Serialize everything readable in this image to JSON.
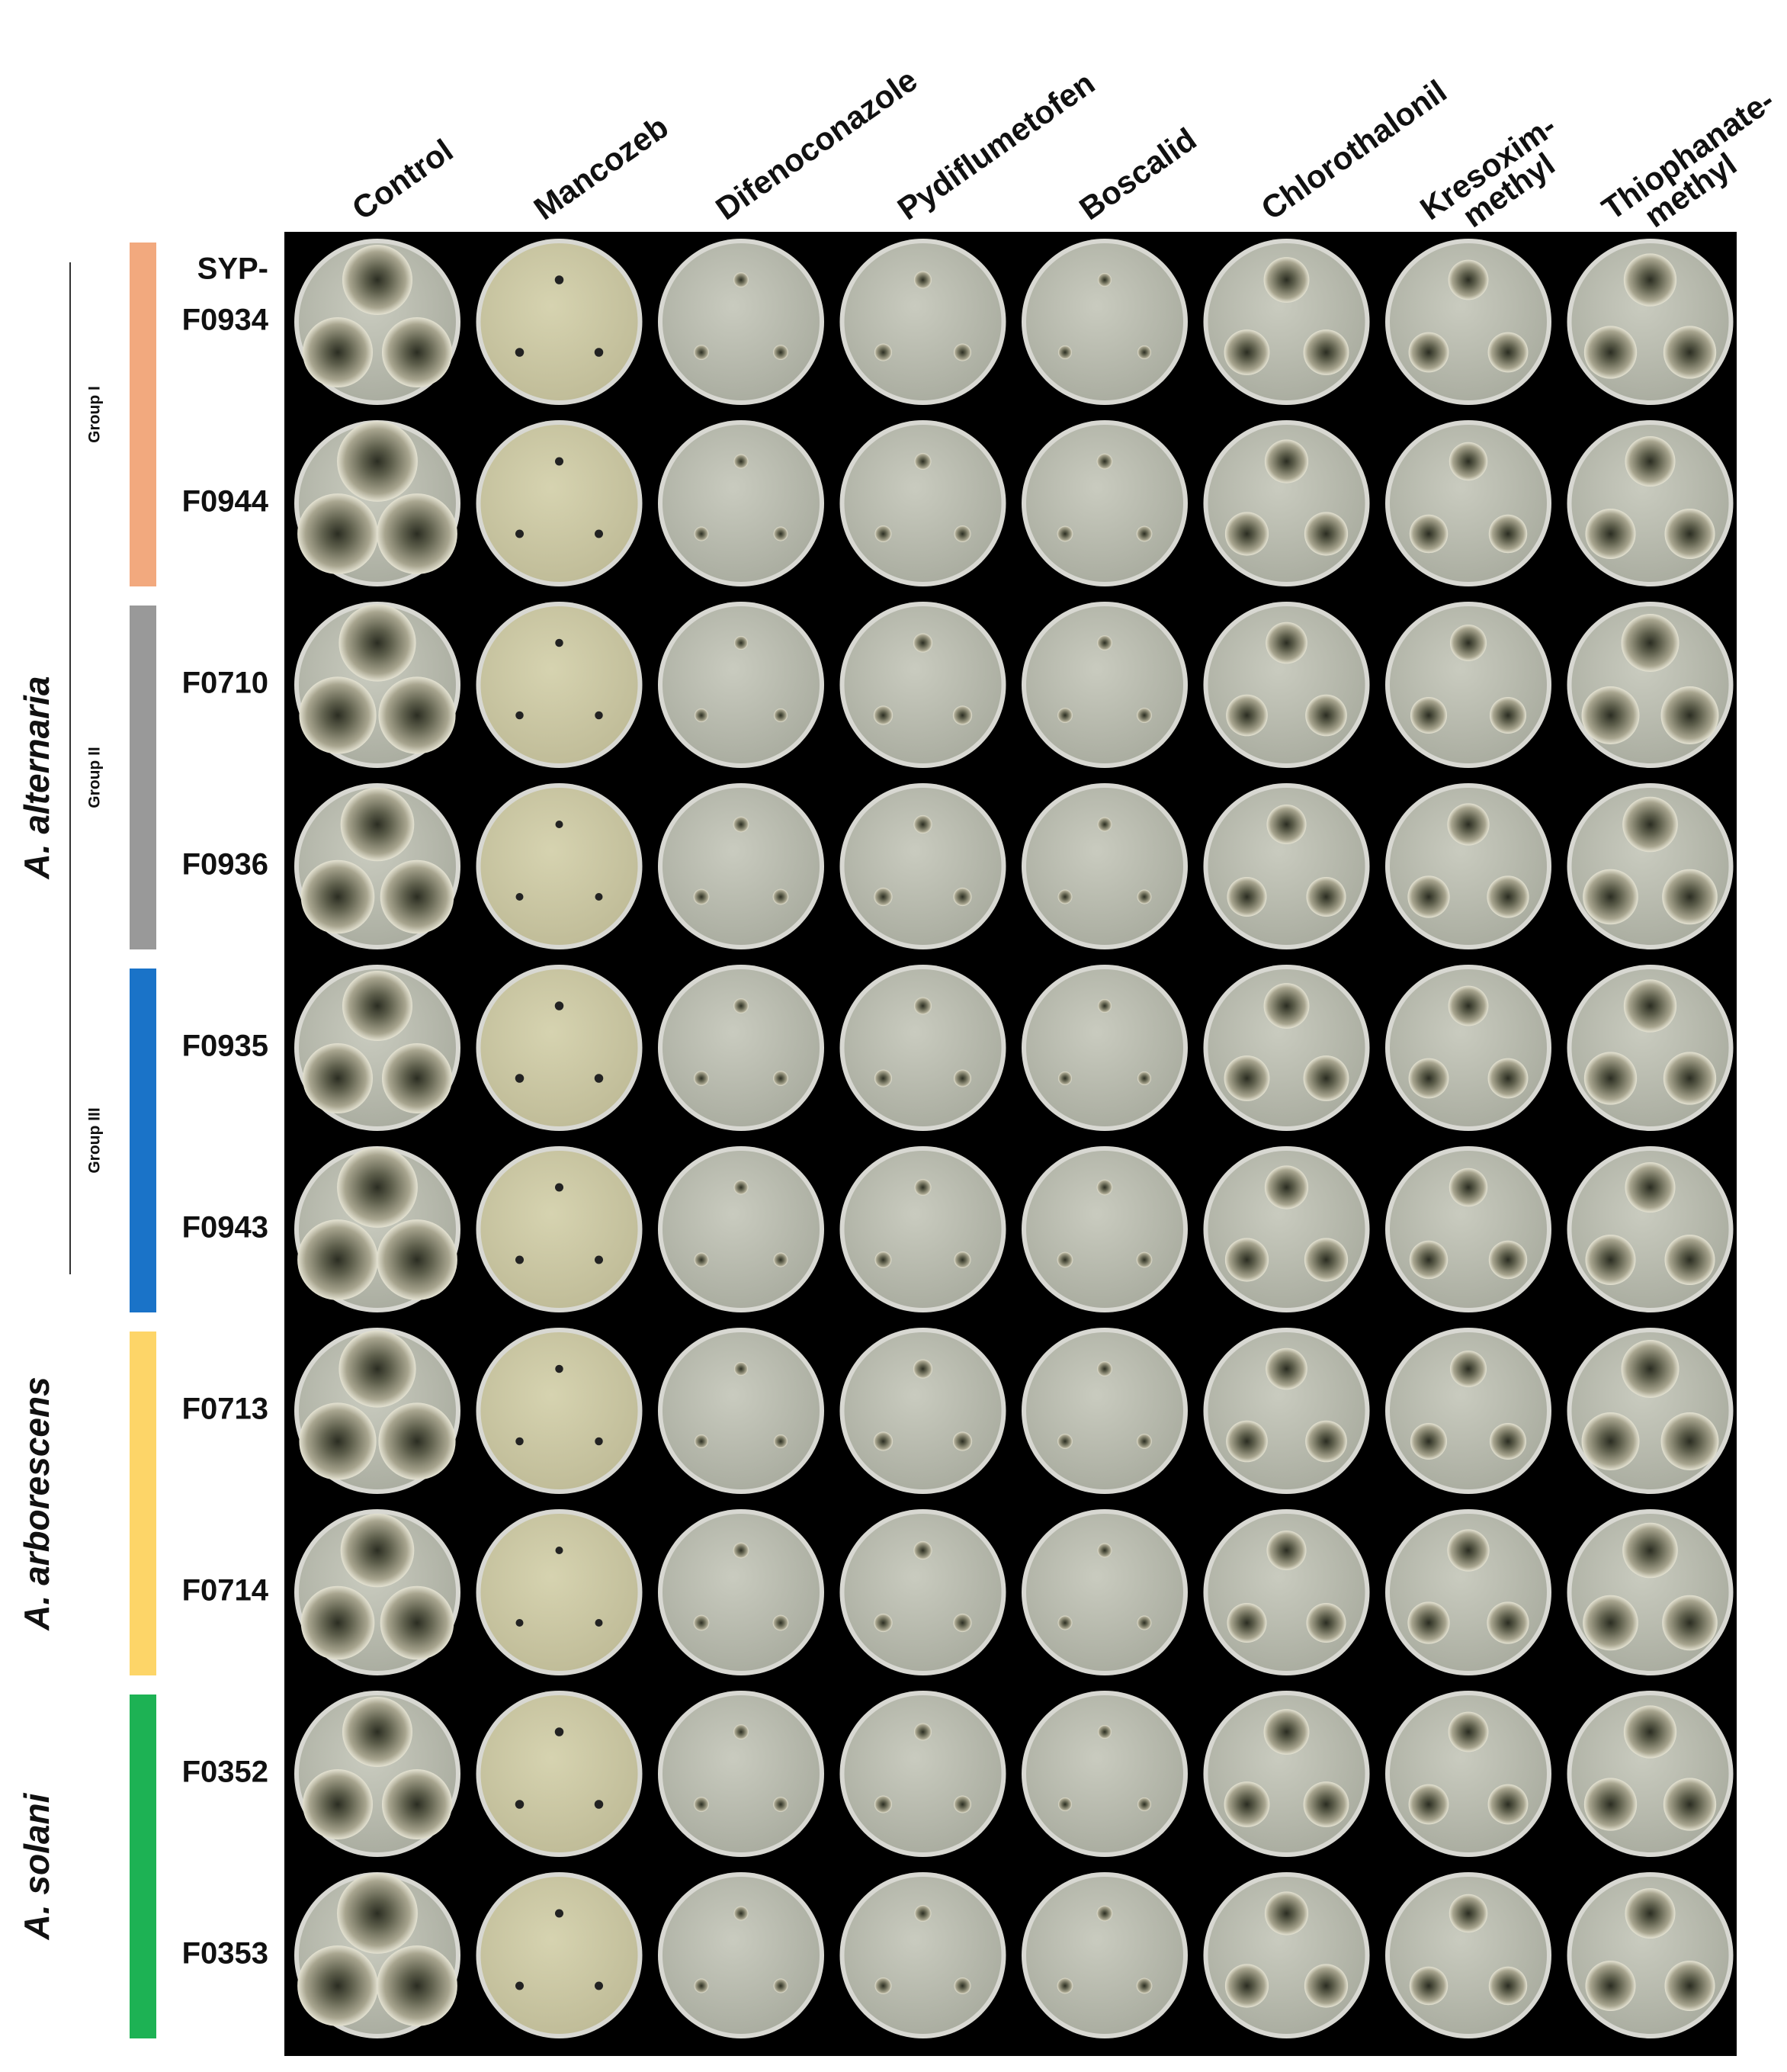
{
  "columns": [
    {
      "lines": [
        "Control"
      ]
    },
    {
      "lines": [
        "Mancozeb"
      ]
    },
    {
      "lines": [
        "Difenoconazole"
      ]
    },
    {
      "lines": [
        "Pydiflumetofen"
      ]
    },
    {
      "lines": [
        "Boscalid"
      ]
    },
    {
      "lines": [
        "Chlorothalonil"
      ]
    },
    {
      "lines": [
        "Kresoxim-",
        "methyl"
      ]
    },
    {
      "lines": [
        "Thiophanate-",
        "methyl"
      ]
    }
  ],
  "prefix": "SYP-",
  "rows": [
    "F0934",
    "F0944",
    "F0710",
    "F0936",
    "F0935",
    "F0943",
    "F0713",
    "F0714",
    "F0352",
    "F0353"
  ],
  "species": [
    {
      "name": "A. alternaria",
      "groups": [
        {
          "label": "Group I",
          "color": "#f2a97e"
        },
        {
          "label": "Group II",
          "color": "#999999"
        },
        {
          "label": "Group III",
          "color": "#1a73c8"
        }
      ]
    },
    {
      "name": "A. arborescens",
      "groups": [
        {
          "color": "#fdd568"
        }
      ]
    },
    {
      "name": "A. solani",
      "groups": [
        {
          "color": "#1db254"
        }
      ]
    }
  ]
}
